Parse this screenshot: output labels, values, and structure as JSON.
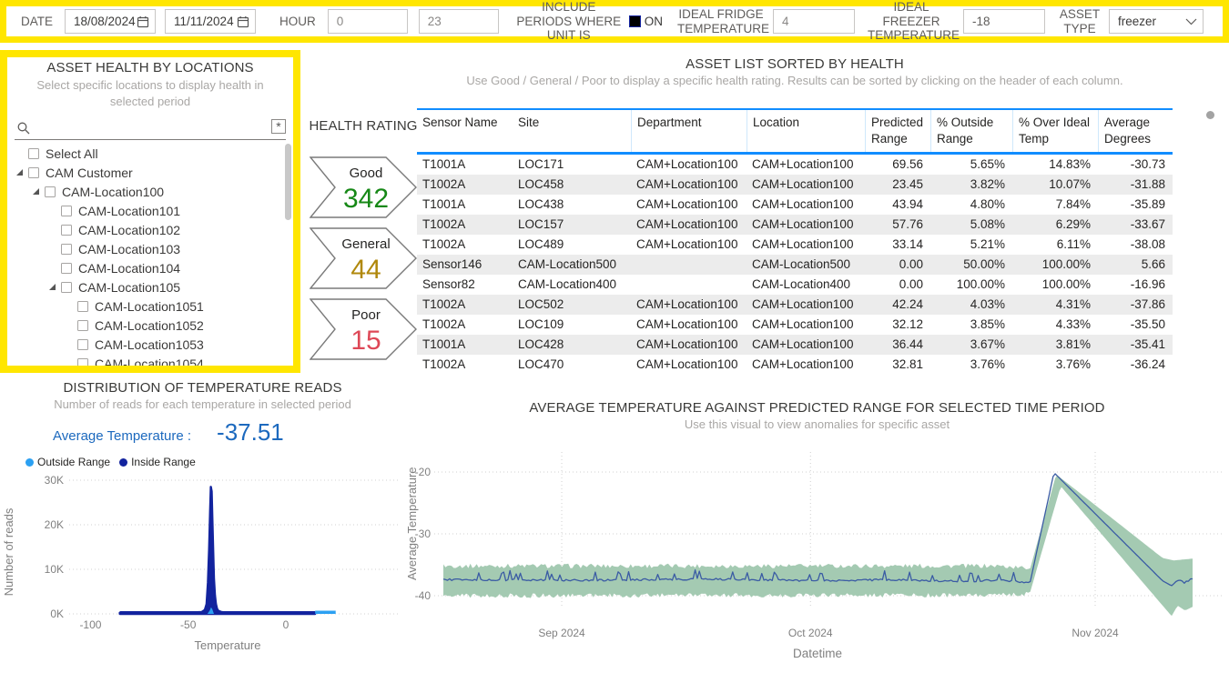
{
  "filters": {
    "date_label": "DATE",
    "date_from": "18/08/2024",
    "date_to": "11/11/2024",
    "hour_label": "HOUR",
    "hour_from": "0",
    "hour_to": "23",
    "include_periods_label": "INCLUDE PERIODS WHERE UNIT IS",
    "toggle_state": "ON",
    "ideal_fridge_label": "IDEAL FRIDGE TEMPERATURE",
    "ideal_fridge_value": "4",
    "ideal_freezer_label": "IDEAL FREEZER TEMPERATURE",
    "ideal_freezer_value": "-18",
    "asset_type_label": "ASSET TYPE",
    "asset_type_value": "freezer"
  },
  "location_slicer": {
    "title": "ASSET HEALTH BY LOCATIONS",
    "subtitle": "Select specific locations to display health in selected period",
    "items": [
      {
        "label": "Select All",
        "level": 0,
        "expandable": false
      },
      {
        "label": "CAM Customer",
        "level": 0,
        "expandable": true
      },
      {
        "label": "CAM-Location100",
        "level": 1,
        "expandable": true
      },
      {
        "label": "CAM-Location101",
        "level": 2,
        "expandable": false
      },
      {
        "label": "CAM-Location102",
        "level": 2,
        "expandable": false
      },
      {
        "label": "CAM-Location103",
        "level": 2,
        "expandable": false
      },
      {
        "label": "CAM-Location104",
        "level": 2,
        "expandable": false
      },
      {
        "label": "CAM-Location105",
        "level": 2,
        "expandable": true
      },
      {
        "label": "CAM-Location1051",
        "level": 3,
        "expandable": false
      },
      {
        "label": "CAM-Location1052",
        "level": 3,
        "expandable": false
      },
      {
        "label": "CAM-Location1053",
        "level": 3,
        "expandable": false
      },
      {
        "label": "CAM-Location1054",
        "level": 3,
        "expandable": false
      },
      {
        "label": "",
        "level": 3,
        "expandable": false
      }
    ]
  },
  "health_rating": {
    "title": "HEALTH RATING",
    "items": [
      {
        "label": "Good",
        "value": "342",
        "color": "#168816"
      },
      {
        "label": "General",
        "value": "44",
        "color": "#b0880c"
      },
      {
        "label": "Poor",
        "value": "15",
        "color": "#de4857"
      }
    ]
  },
  "asset_table": {
    "title": "ASSET LIST SORTED BY HEALTH",
    "subtitle": "Use Good / General / Poor  to display a specific health rating. Results can be sorted by clicking on the header of each column.",
    "columns": [
      "Sensor Name",
      "Site",
      "Department",
      "Location",
      "Predicted Range",
      "% Outside Range",
      "% Over Ideal Temp",
      "Average Degrees"
    ],
    "rows": [
      [
        "T1001A",
        "LOC171",
        "CAM+Location100",
        "CAM+Location100",
        "69.56",
        "5.65%",
        "14.83%",
        "-30.73"
      ],
      [
        "T1002A",
        "LOC458",
        "CAM+Location100",
        "CAM+Location100",
        "23.45",
        "3.82%",
        "10.07%",
        "-31.88"
      ],
      [
        "T1001A",
        "LOC438",
        "CAM+Location100",
        "CAM+Location100",
        "43.94",
        "4.80%",
        "7.84%",
        "-35.89"
      ],
      [
        "T1002A",
        "LOC157",
        "CAM+Location100",
        "CAM+Location100",
        "57.76",
        "5.08%",
        "6.29%",
        "-33.67"
      ],
      [
        "T1002A",
        "LOC489",
        "CAM+Location100",
        "CAM+Location100",
        "33.14",
        "5.21%",
        "6.11%",
        "-38.08"
      ],
      [
        "Sensor146",
        "CAM-Location500",
        "",
        "CAM-Location500",
        "0.00",
        "50.00%",
        "100.00%",
        "5.66"
      ],
      [
        "Sensor82",
        "CAM-Location400",
        "",
        "CAM-Location400",
        "0.00",
        "100.00%",
        "100.00%",
        "-16.96"
      ],
      [
        "T1002A",
        "LOC502",
        "CAM+Location100",
        "CAM+Location100",
        "42.24",
        "4.03%",
        "4.31%",
        "-37.86"
      ],
      [
        "T1002A",
        "LOC109",
        "CAM+Location100",
        "CAM+Location100",
        "32.12",
        "3.85%",
        "4.33%",
        "-35.50"
      ],
      [
        "T1001A",
        "LOC428",
        "CAM+Location100",
        "CAM+Location100",
        "36.44",
        "3.67%",
        "3.81%",
        "-35.41"
      ],
      [
        "T1002A",
        "LOC470",
        "CAM+Location100",
        "CAM+Location100",
        "32.81",
        "3.76%",
        "3.76%",
        "-36.24"
      ]
    ]
  },
  "distribution": {
    "title": "DISTRIBUTION OF TEMPERATURE READS",
    "subtitle": "Number of reads for each temperature in selected period",
    "avg_label": "Average Temperature :",
    "avg_value": "-37.51",
    "legend": [
      {
        "label": "Outside Range",
        "color": "#2ba0f2"
      },
      {
        "label": "Inside Range",
        "color": "#12239e"
      }
    ]
  },
  "range_chart": {
    "title": "AVERAGE TEMPERATURE AGAINST PREDICTED RANGE FOR SELECTED TIME PERIOD",
    "subtitle": "Use this visual to view anomalies for specific asset",
    "ylabel": "Average Temperature",
    "xlabel": "Datetime"
  },
  "chart_data": [
    {
      "id": "temperature_distribution",
      "type": "area",
      "title": "DISTRIBUTION OF TEMPERATURE READS",
      "xlabel": "Temperature",
      "ylabel": "Number of reads",
      "x_ticks": [
        -100,
        -50,
        0
      ],
      "y_ticks": [
        {
          "v": 0,
          "label": "0K"
        },
        {
          "v": 10000,
          "label": "10K"
        },
        {
          "v": 20000,
          "label": "20K"
        },
        {
          "v": 30000,
          "label": "30K"
        }
      ],
      "x_range": [
        -110,
        55
      ],
      "y_range": [
        0,
        30000
      ],
      "inside_color": "#12239e",
      "outside_color": "#2ba0f2",
      "inside_points": [
        [
          -85,
          250
        ],
        [
          -55,
          260
        ],
        [
          -48,
          320
        ],
        [
          -43,
          420
        ],
        [
          -41.5,
          900
        ],
        [
          -40.6,
          2200
        ],
        [
          -39.9,
          7000
        ],
        [
          -39.3,
          14500
        ],
        [
          -38.8,
          23000
        ],
        [
          -38.4,
          28500
        ],
        [
          -38,
          27500
        ],
        [
          -37.6,
          21000
        ],
        [
          -37.2,
          14000
        ],
        [
          -36.8,
          8000
        ],
        [
          -36.3,
          4200
        ],
        [
          -35.8,
          2200
        ],
        [
          -35.2,
          1100
        ],
        [
          -34.5,
          650
        ],
        [
          -33,
          420
        ],
        [
          -31,
          320
        ],
        [
          -28,
          280
        ],
        [
          -20,
          260
        ],
        [
          -10,
          255
        ],
        [
          0,
          255
        ],
        [
          8,
          250
        ],
        [
          15,
          250
        ]
      ],
      "outside_bump": [
        [
          -40.2,
          0
        ],
        [
          -38.9,
          800
        ],
        [
          -38.3,
          1500
        ],
        [
          -37.7,
          1100
        ],
        [
          -36.8,
          0
        ]
      ],
      "outside_segment": [
        15,
        25.5
      ]
    },
    {
      "id": "avg_temp_vs_predicted",
      "type": "line+band",
      "title": "AVERAGE TEMPERATURE AGAINST PREDICTED RANGE FOR SELECTED TIME PERIOD",
      "xlabel": "Datetime",
      "ylabel": "Average Temperature",
      "x_ticks": [
        {
          "label": "Sep 2024",
          "t": 0.158
        },
        {
          "label": "Oct 2024",
          "t": 0.49
        },
        {
          "label": "Nov 2024",
          "t": 0.87
        }
      ],
      "y_ticks": [
        -20,
        -30,
        -40
      ],
      "line_color": "#3a5ba4",
      "band_color": "#a4cab2",
      "noise_region_end": 0.78,
      "line_keypoints": [
        [
          0,
          -37.4
        ],
        [
          0.2,
          -37.5
        ],
        [
          0.35,
          -37.3
        ],
        [
          0.5,
          -37.6
        ],
        [
          0.6,
          -37.4
        ],
        [
          0.7,
          -37.7
        ],
        [
          0.74,
          -37.4
        ],
        [
          0.783,
          -37.9
        ],
        [
          0.815,
          -20.1
        ],
        [
          0.96,
          -37.6
        ],
        [
          0.972,
          -38.4
        ],
        [
          0.98,
          -37.5
        ],
        [
          0.988,
          -37.9
        ],
        [
          1,
          -37.4
        ]
      ],
      "band_top_keypoints": [
        [
          0,
          -35.3
        ],
        [
          0.74,
          -35.3
        ],
        [
          0.783,
          -35.7
        ],
        [
          0.818,
          -20.4
        ],
        [
          0.96,
          -33.9
        ],
        [
          0.975,
          -34.3
        ],
        [
          1,
          -34.0
        ]
      ],
      "band_bottom_keypoints": [
        [
          0,
          -39.9
        ],
        [
          0.74,
          -39.8
        ],
        [
          0.783,
          -39.5
        ],
        [
          0.824,
          -22.3
        ],
        [
          0.972,
          -43.3
        ],
        [
          0.98,
          -41.6
        ],
        [
          0.99,
          -42.4
        ],
        [
          1,
          -41.8
        ]
      ]
    }
  ]
}
